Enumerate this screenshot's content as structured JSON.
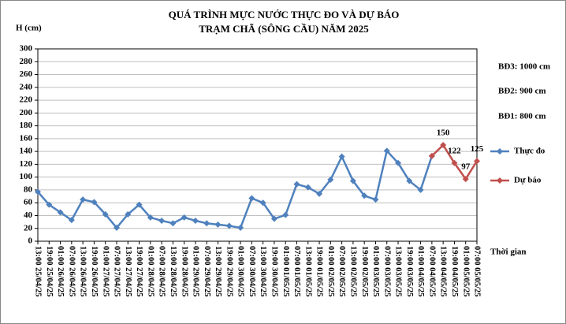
{
  "chart_data": {
    "type": "line",
    "title": [
      "QUÁ TRÌNH MỰC NƯỚC THỰC ĐO VÀ DỰ BÁO",
      "TRẠM CHÃ (SÔNG CẦU) NĂM 2025"
    ],
    "y_label": "H (cm)",
    "x_label": "Thời gian",
    "annotations": [
      "BĐ3: 1000 cm",
      "BĐ2: 900 cm",
      "BĐ1: 800 cm"
    ],
    "categories": [
      "13:00 25/04/25",
      "19:00 25/04/25",
      "01:00 26/04/25",
      "07:00 26/04/25",
      "13:00 26/04/25",
      "19:00 26/04/25",
      "01:00 27/04/25",
      "07:00 27/04/25",
      "13:00 27/04/25",
      "19:00 27/04/25",
      "01:00 28/04/25",
      "07:00 28/04/25",
      "13:00 28/04/25",
      "19:00 28/04/25",
      "01:00 29/04/25",
      "07:00 29/04/25",
      "13:00 29/04/25",
      "19:00 29/04/25",
      "01:00 30/04/25",
      "07:00 30/04/25",
      "13:00 30/04/25",
      "19:00 30/04/25",
      "01:00 01/05/25",
      "07:00 01/05/25",
      "13:00 01/05/25",
      "19:00 01/05/25",
      "01:00 02/05/25",
      "07:00 02/05/25",
      "13:00 02/05/25",
      "19:00 02/05/25",
      "01:00 03/05/25",
      "07:00 03/05/25",
      "13:00 03/05/25",
      "19:00 03/05/25",
      "01:00 04/05/25",
      "07:00 04/05/25",
      "13:00 04/05/25",
      "19:00 04/05/25",
      "01:00 05/05/25",
      "07:00 05/05/25"
    ],
    "series": [
      {
        "name": "Thực đo",
        "color": "#4f81bd",
        "values": [
          77,
          57,
          45,
          33,
          65,
          61,
          42,
          21,
          42,
          57,
          37,
          32,
          28,
          37,
          32,
          28,
          26,
          24,
          21,
          67,
          60,
          35,
          41,
          89,
          84,
          74,
          96,
          132,
          94,
          71,
          65,
          141,
          122,
          94,
          80,
          133,
          null,
          null,
          null,
          null
        ]
      },
      {
        "name": "Dự báo",
        "color": "#c0504d",
        "values": [
          null,
          null,
          null,
          null,
          null,
          null,
          null,
          null,
          null,
          null,
          null,
          null,
          null,
          null,
          null,
          null,
          null,
          null,
          null,
          null,
          null,
          null,
          null,
          null,
          null,
          null,
          null,
          null,
          null,
          null,
          null,
          null,
          null,
          null,
          null,
          133,
          150,
          122,
          97,
          125
        ],
        "value_labels": [
          null,
          null,
          null,
          null,
          null,
          null,
          null,
          null,
          null,
          null,
          null,
          null,
          null,
          null,
          null,
          null,
          null,
          null,
          null,
          null,
          null,
          null,
          null,
          null,
          null,
          null,
          null,
          null,
          null,
          null,
          null,
          null,
          null,
          null,
          null,
          null,
          "150",
          "122",
          "97",
          "125"
        ]
      }
    ],
    "ylim": [
      0,
      300
    ],
    "yticks": [
      0,
      20,
      40,
      60,
      80,
      100,
      120,
      140,
      160,
      180,
      200,
      220,
      240,
      260,
      280,
      300
    ],
    "grid": true,
    "legend": "right"
  }
}
